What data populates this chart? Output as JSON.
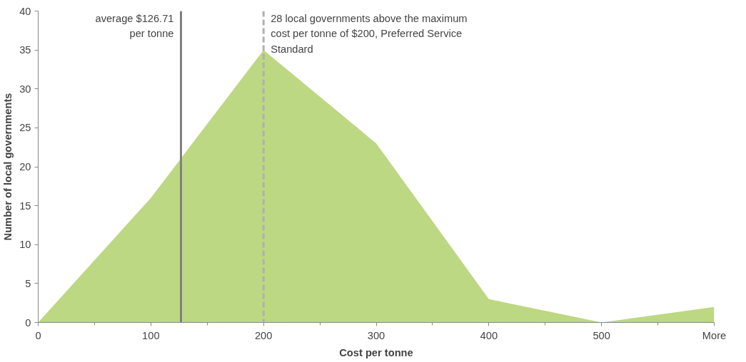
{
  "chart_data": {
    "type": "area",
    "xlabel": "Cost per tonne",
    "ylabel": "Number of local governments",
    "x": [
      0,
      100,
      200,
      300,
      400,
      500,
      600
    ],
    "series": [
      {
        "color": "#bdd882",
        "values": [
          0,
          16,
          35,
          23,
          3,
          0,
          2
        ]
      }
    ],
    "xlim": [
      0,
      600
    ],
    "xticks": [
      0,
      {
        "value": 50,
        "label": null
      },
      100,
      {
        "value": 150,
        "label": null
      },
      200,
      {
        "value": 250,
        "label": null
      },
      300,
      {
        "value": 350,
        "label": null
      },
      400,
      {
        "value": 450,
        "label": null
      },
      500,
      {
        "value": 550,
        "label": null
      },
      {
        "value": 600,
        "label": "More"
      }
    ],
    "ylim": [
      0,
      40
    ],
    "yticks": [
      0,
      5,
      10,
      15,
      20,
      25,
      30,
      35,
      40
    ],
    "grid": false,
    "ref_lines": [
      {
        "axis": "x",
        "value": 126.71,
        "label": "average $126.71\nper tonne",
        "color": "#808080",
        "line_style": "solid"
      },
      {
        "axis": "x",
        "value": 200,
        "label": "28 local governments above the maximum\ncost per tonne of $200, Preferred Service\nStandard",
        "color": "#b0b0b0",
        "line_style": "dashed"
      }
    ]
  }
}
